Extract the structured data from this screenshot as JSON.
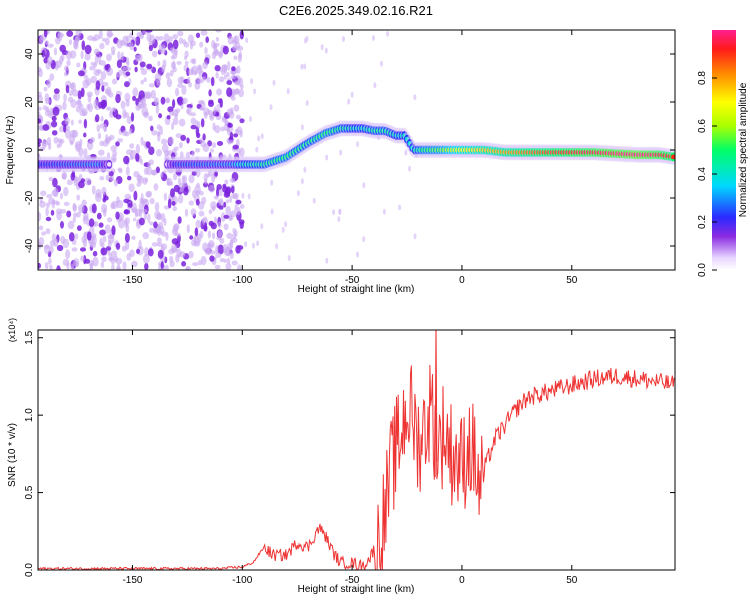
{
  "title": "C2E6.2025.349.02.16.R21",
  "chart_data": [
    {
      "type": "heatmap",
      "xlabel": "Height of straight line (km)",
      "ylabel": "Frequency (Hz)",
      "xlim": [
        -193,
        97
      ],
      "ylim": [
        -50,
        50
      ],
      "x_ticks": [
        -150,
        -100,
        -50,
        0,
        50
      ],
      "y_ticks": [
        -40,
        -20,
        0,
        20,
        40
      ],
      "colorbar": {
        "label": "Normalized spectral amplitude",
        "range": [
          0,
          1
        ],
        "ticks": [
          "0.0",
          "0.2",
          "0.4",
          "0.6",
          "0.8"
        ]
      },
      "ridge": {
        "x": [
          -193,
          -165,
          -160,
          -135,
          -130,
          -105,
          -100,
          -90,
          -80,
          -70,
          -62,
          -55,
          -50,
          -45,
          -40,
          -35,
          -30,
          -26,
          -22,
          -18,
          -10,
          0,
          10,
          20,
          40,
          60,
          80,
          90,
          97
        ],
        "y": [
          -6,
          -6,
          -6,
          -6,
          -6,
          -6,
          -6,
          -6,
          -3,
          3,
          7,
          9,
          9,
          9,
          8,
          8,
          6,
          6,
          0,
          0,
          0,
          0,
          0,
          -1,
          -1,
          -1,
          -2,
          -2,
          -3
        ],
        "level": [
          0.22,
          0.3,
          0.0,
          0.0,
          0.25,
          0.3,
          0.4,
          0.45,
          0.5,
          0.45,
          0.5,
          0.45,
          0.4,
          0.4,
          0.45,
          0.45,
          0.4,
          0.4,
          0.4,
          0.5,
          0.55,
          0.7,
          0.75,
          0.8,
          0.9,
          0.95,
          1.0,
          0.95,
          0.9
        ]
      },
      "noise_region_x": [
        -193,
        -100
      ]
    },
    {
      "type": "line",
      "xlabel": "Height of straight line (km)",
      "ylabel": "SNR (10 * v/v)",
      "y_multiplier": "(x10⁴)",
      "xlim": [
        -193,
        97
      ],
      "ylim": [
        0,
        1.55
      ],
      "x_ticks": [
        -150,
        -100,
        -50,
        0,
        50
      ],
      "y_ticks": [
        0.0,
        0.5,
        1.0,
        1.5
      ],
      "series": [
        {
          "name": "SNR",
          "color": "#ee3333",
          "x": [
            -193,
            -170,
            -150,
            -130,
            -110,
            -100,
            -95,
            -90,
            -86,
            -80,
            -75,
            -70,
            -65,
            -62,
            -58,
            -55,
            -50,
            -45,
            -42,
            -38,
            -35,
            -32,
            -28,
            -25,
            -22,
            -20,
            -17,
            -14,
            -12,
            -10,
            -8,
            -5,
            -2,
            0,
            3,
            6,
            8,
            10,
            15,
            20,
            25,
            30,
            40,
            50,
            60,
            70,
            80,
            90,
            97
          ],
          "y": [
            0.01,
            0.01,
            0.01,
            0.01,
            0.01,
            0.02,
            0.05,
            0.15,
            0.1,
            0.1,
            0.18,
            0.15,
            0.28,
            0.22,
            0.1,
            0.05,
            0.05,
            0.03,
            0.08,
            0.2,
            0.4,
            0.7,
            0.9,
            1.1,
            1.0,
            0.85,
            0.95,
            1.1,
            0.9,
            0.85,
            0.95,
            0.8,
            0.75,
            0.7,
            0.85,
            0.75,
            0.55,
            0.65,
            0.85,
            0.95,
            1.05,
            1.12,
            1.16,
            1.2,
            1.24,
            1.26,
            1.24,
            1.22,
            1.2
          ]
        }
      ]
    }
  ]
}
